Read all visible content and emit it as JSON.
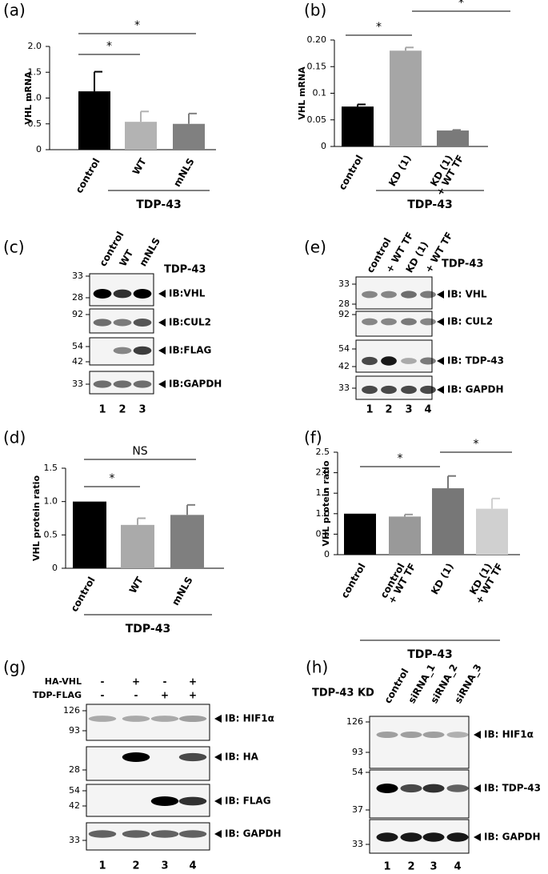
{
  "chart_data": [
    {
      "type": "bar",
      "panel": "(a)",
      "ylabel": "VHL mRNA",
      "categories": [
        "control",
        "WT",
        "mNLS"
      ],
      "values": [
        1.13,
        0.54,
        0.5
      ],
      "errors": [
        0.38,
        0.2,
        0.2
      ],
      "colors": [
        "#000000",
        "#b3b3b3",
        "#808080"
      ],
      "ylim": [
        0,
        2
      ],
      "yticks": [
        0,
        0.5,
        {
          "value": 1,
          "label": "1.0"
        },
        1.5,
        {
          "value": 2,
          "label": "2.0"
        }
      ],
      "group_label": "TDP-43",
      "annotations": [
        "*",
        "*"
      ]
    },
    {
      "type": "bar",
      "panel": "(b)",
      "ylabel": "VHL mRNA",
      "categories": [
        "control",
        "KD (1)",
        [
          "KD (1)",
          "+ WT TF"
        ]
      ],
      "values": [
        0.075,
        0.18,
        0.03
      ],
      "errors": [
        0.004,
        0.006,
        0.001
      ],
      "colors": [
        "#000000",
        "#a6a6a6",
        "#7a7a7a"
      ],
      "ylim": [
        0,
        0.2
      ],
      "yticks": [
        0,
        0.05,
        0.1,
        0.15,
        {
          "value": 0.2,
          "label": "0.20"
        }
      ],
      "group_label": "TDP-43",
      "annotations": [
        "*",
        "*"
      ]
    },
    {
      "type": "bar",
      "panel": "(d)",
      "ylabel": "VHL protein ratio",
      "categories": [
        "control",
        "WT",
        "mNLS"
      ],
      "values": [
        1,
        0.65,
        0.8
      ],
      "errors": [
        null,
        0.1,
        0.15
      ],
      "colors": [
        "#000000",
        "#aaaaaa",
        "#7f7f7f"
      ],
      "ylim": [
        0,
        1.5
      ],
      "yticks": [
        0,
        0.5,
        {
          "value": 1,
          "label": "1.0"
        },
        1.5
      ],
      "group_label": "TDP-43",
      "annotations": [
        "*",
        "NS"
      ]
    },
    {
      "type": "bar",
      "panel": "(f)",
      "ylabel": "VHL protein ratio",
      "categories": [
        "control",
        [
          "control",
          "+ WT TF"
        ],
        "KD (1)",
        [
          "KD (1)",
          "+ WT TF"
        ]
      ],
      "values": [
        1,
        0.93,
        1.62,
        1.12
      ],
      "errors": [
        null,
        0.05,
        0.3,
        0.25
      ],
      "colors": [
        "#000000",
        "#999999",
        "#777777",
        "#d0d0d0"
      ],
      "ylim": [
        0,
        2.5
      ],
      "yticks": [
        0,
        0.5,
        {
          "value": 1,
          "label": "1.0"
        },
        1.5,
        {
          "value": 2,
          "label": "2.0"
        },
        2.5
      ],
      "group_label": "TDP-43",
      "annotations": [
        "*",
        "*"
      ]
    }
  ],
  "blots": [
    {
      "panel": "(c)",
      "lanes": [
        "control",
        "WT",
        "mNLS"
      ],
      "group_label": "TDP-43",
      "rows": [
        {
          "markers": [
            33,
            28
          ],
          "label": "IB:VHL"
        },
        {
          "markers": [
            92
          ],
          "label": "IB:CUL2"
        },
        {
          "markers": [
            54,
            42
          ],
          "label": "IB:FLAG"
        },
        {
          "markers": [
            33
          ],
          "label": "IB:GAPDH"
        }
      ],
      "lane_numbers": [
        1,
        2,
        3
      ]
    },
    {
      "panel": "(e)",
      "lanes": [
        "control",
        "+ WT TF",
        "KD (1)",
        "+ WT TF"
      ],
      "group_label": "TDP-43",
      "rows": [
        {
          "markers": [
            33,
            28
          ],
          "label": "IB: VHL"
        },
        {
          "markers": [
            92
          ],
          "label": "IB: CUL2"
        },
        {
          "markers": [
            54,
            42
          ],
          "label": "IB: TDP-43"
        },
        {
          "markers": [
            33
          ],
          "label": "IB: GAPDH"
        }
      ],
      "lane_numbers": [
        1,
        2,
        3,
        4
      ]
    },
    {
      "panel": "(g)",
      "conditions": [
        {
          "label": "HA-VHL",
          "signs": [
            "-",
            "+",
            "-",
            "+"
          ]
        },
        {
          "label": "TDP-FLAG",
          "signs": [
            "-",
            "-",
            "+",
            "+"
          ]
        }
      ],
      "rows": [
        {
          "markers": [
            126,
            93
          ],
          "label": "IB: HIF1α"
        },
        {
          "markers": [
            28
          ],
          "label": "IB: HA"
        },
        {
          "markers": [
            54,
            42
          ],
          "label": "IB: FLAG"
        },
        {
          "markers": [
            33
          ],
          "label": "IB: GAPDH"
        }
      ],
      "lane_numbers": [
        1,
        2,
        3,
        4
      ]
    },
    {
      "panel": "(h)",
      "group_label": "TDP-43 KD",
      "lanes": [
        "control",
        "siRNA_1",
        "siRNA_2",
        "siRNA_3"
      ],
      "rows": [
        {
          "markers": [
            126,
            93
          ],
          "label": "IB: HIF1α"
        },
        {
          "markers": [
            54,
            37
          ],
          "label": "IB: TDP-43"
        },
        {
          "markers": [
            33
          ],
          "label": "IB: GAPDH"
        }
      ],
      "lane_numbers": [
        1,
        2,
        3,
        4
      ]
    }
  ]
}
